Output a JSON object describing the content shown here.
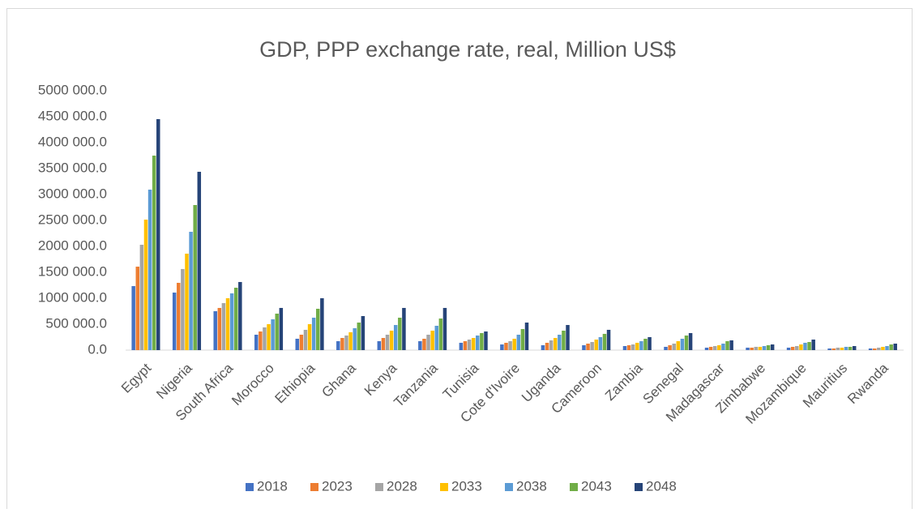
{
  "chart_data": {
    "type": "bar",
    "title": "GDP, PPP exchange rate, real, Million US$",
    "categories": [
      "Egypt",
      "Nigeria",
      "South Africa",
      "Morocco",
      "Ethiopia",
      "Ghana",
      "Kenya",
      "Tanzania",
      "Tunisia",
      "Cote d'Ivoire",
      "Uganda",
      "Cameroon",
      "Zambia",
      "Senegal",
      "Madagascar",
      "Zimbabwe",
      "Mozambique",
      "Mauritius",
      "Rwanda"
    ],
    "series": [
      {
        "name": "2018",
        "color": "#4472c4",
        "values": [
          1234000,
          1109000,
          750000,
          297000,
          219000,
          172000,
          172000,
          172000,
          141000,
          109000,
          94000,
          94000,
          78000,
          63000,
          47000,
          47000,
          47000,
          31000,
          31000
        ]
      },
      {
        "name": "2023",
        "color": "#ed7d31",
        "values": [
          1609000,
          1297000,
          813000,
          359000,
          297000,
          234000,
          234000,
          219000,
          172000,
          141000,
          141000,
          125000,
          94000,
          94000,
          63000,
          47000,
          63000,
          31000,
          31000
        ]
      },
      {
        "name": "2028",
        "color": "#a5a5a5",
        "values": [
          2031000,
          1563000,
          906000,
          438000,
          391000,
          281000,
          297000,
          297000,
          203000,
          172000,
          188000,
          156000,
          109000,
          125000,
          78000,
          63000,
          78000,
          47000,
          47000
        ]
      },
      {
        "name": "2033",
        "color": "#ffc000",
        "values": [
          2516000,
          1859000,
          1000000,
          500000,
          500000,
          344000,
          375000,
          375000,
          234000,
          219000,
          234000,
          203000,
          141000,
          172000,
          94000,
          63000,
          109000,
          47000,
          63000
        ]
      },
      {
        "name": "2038",
        "color": "#5b9bd5",
        "values": [
          3094000,
          2281000,
          1094000,
          594000,
          625000,
          422000,
          484000,
          469000,
          281000,
          297000,
          297000,
          250000,
          172000,
          219000,
          125000,
          78000,
          141000,
          63000,
          78000
        ]
      },
      {
        "name": "2043",
        "color": "#70ad47",
        "values": [
          3750000,
          2797000,
          1203000,
          703000,
          797000,
          531000,
          625000,
          609000,
          328000,
          406000,
          375000,
          313000,
          219000,
          281000,
          172000,
          94000,
          156000,
          63000,
          109000
        ]
      },
      {
        "name": "2048",
        "color": "#264478",
        "values": [
          4453000,
          3438000,
          1313000,
          813000,
          1000000,
          656000,
          813000,
          813000,
          359000,
          531000,
          484000,
          391000,
          250000,
          328000,
          188000,
          109000,
          203000,
          78000,
          125000
        ]
      }
    ],
    "ylim": [
      0,
      5000000
    ],
    "yticks": [
      {
        "value": 0,
        "label": "0.0"
      },
      {
        "value": 500000,
        "label": "500 000.0"
      },
      {
        "value": 1000000,
        "label": "1000 000.0"
      },
      {
        "value": 1500000,
        "label": "1500 000.0"
      },
      {
        "value": 2000000,
        "label": "2000 000.0"
      },
      {
        "value": 2500000,
        "label": "2500 000.0"
      },
      {
        "value": 3000000,
        "label": "3000 000.0"
      },
      {
        "value": 3500000,
        "label": "3500 000.0"
      },
      {
        "value": 4000000,
        "label": "4000 000.0"
      },
      {
        "value": 4500000,
        "label": "4500 000.0"
      },
      {
        "value": 5000000,
        "label": "5000 000.0"
      }
    ],
    "grid": false,
    "legend": "bottom"
  }
}
